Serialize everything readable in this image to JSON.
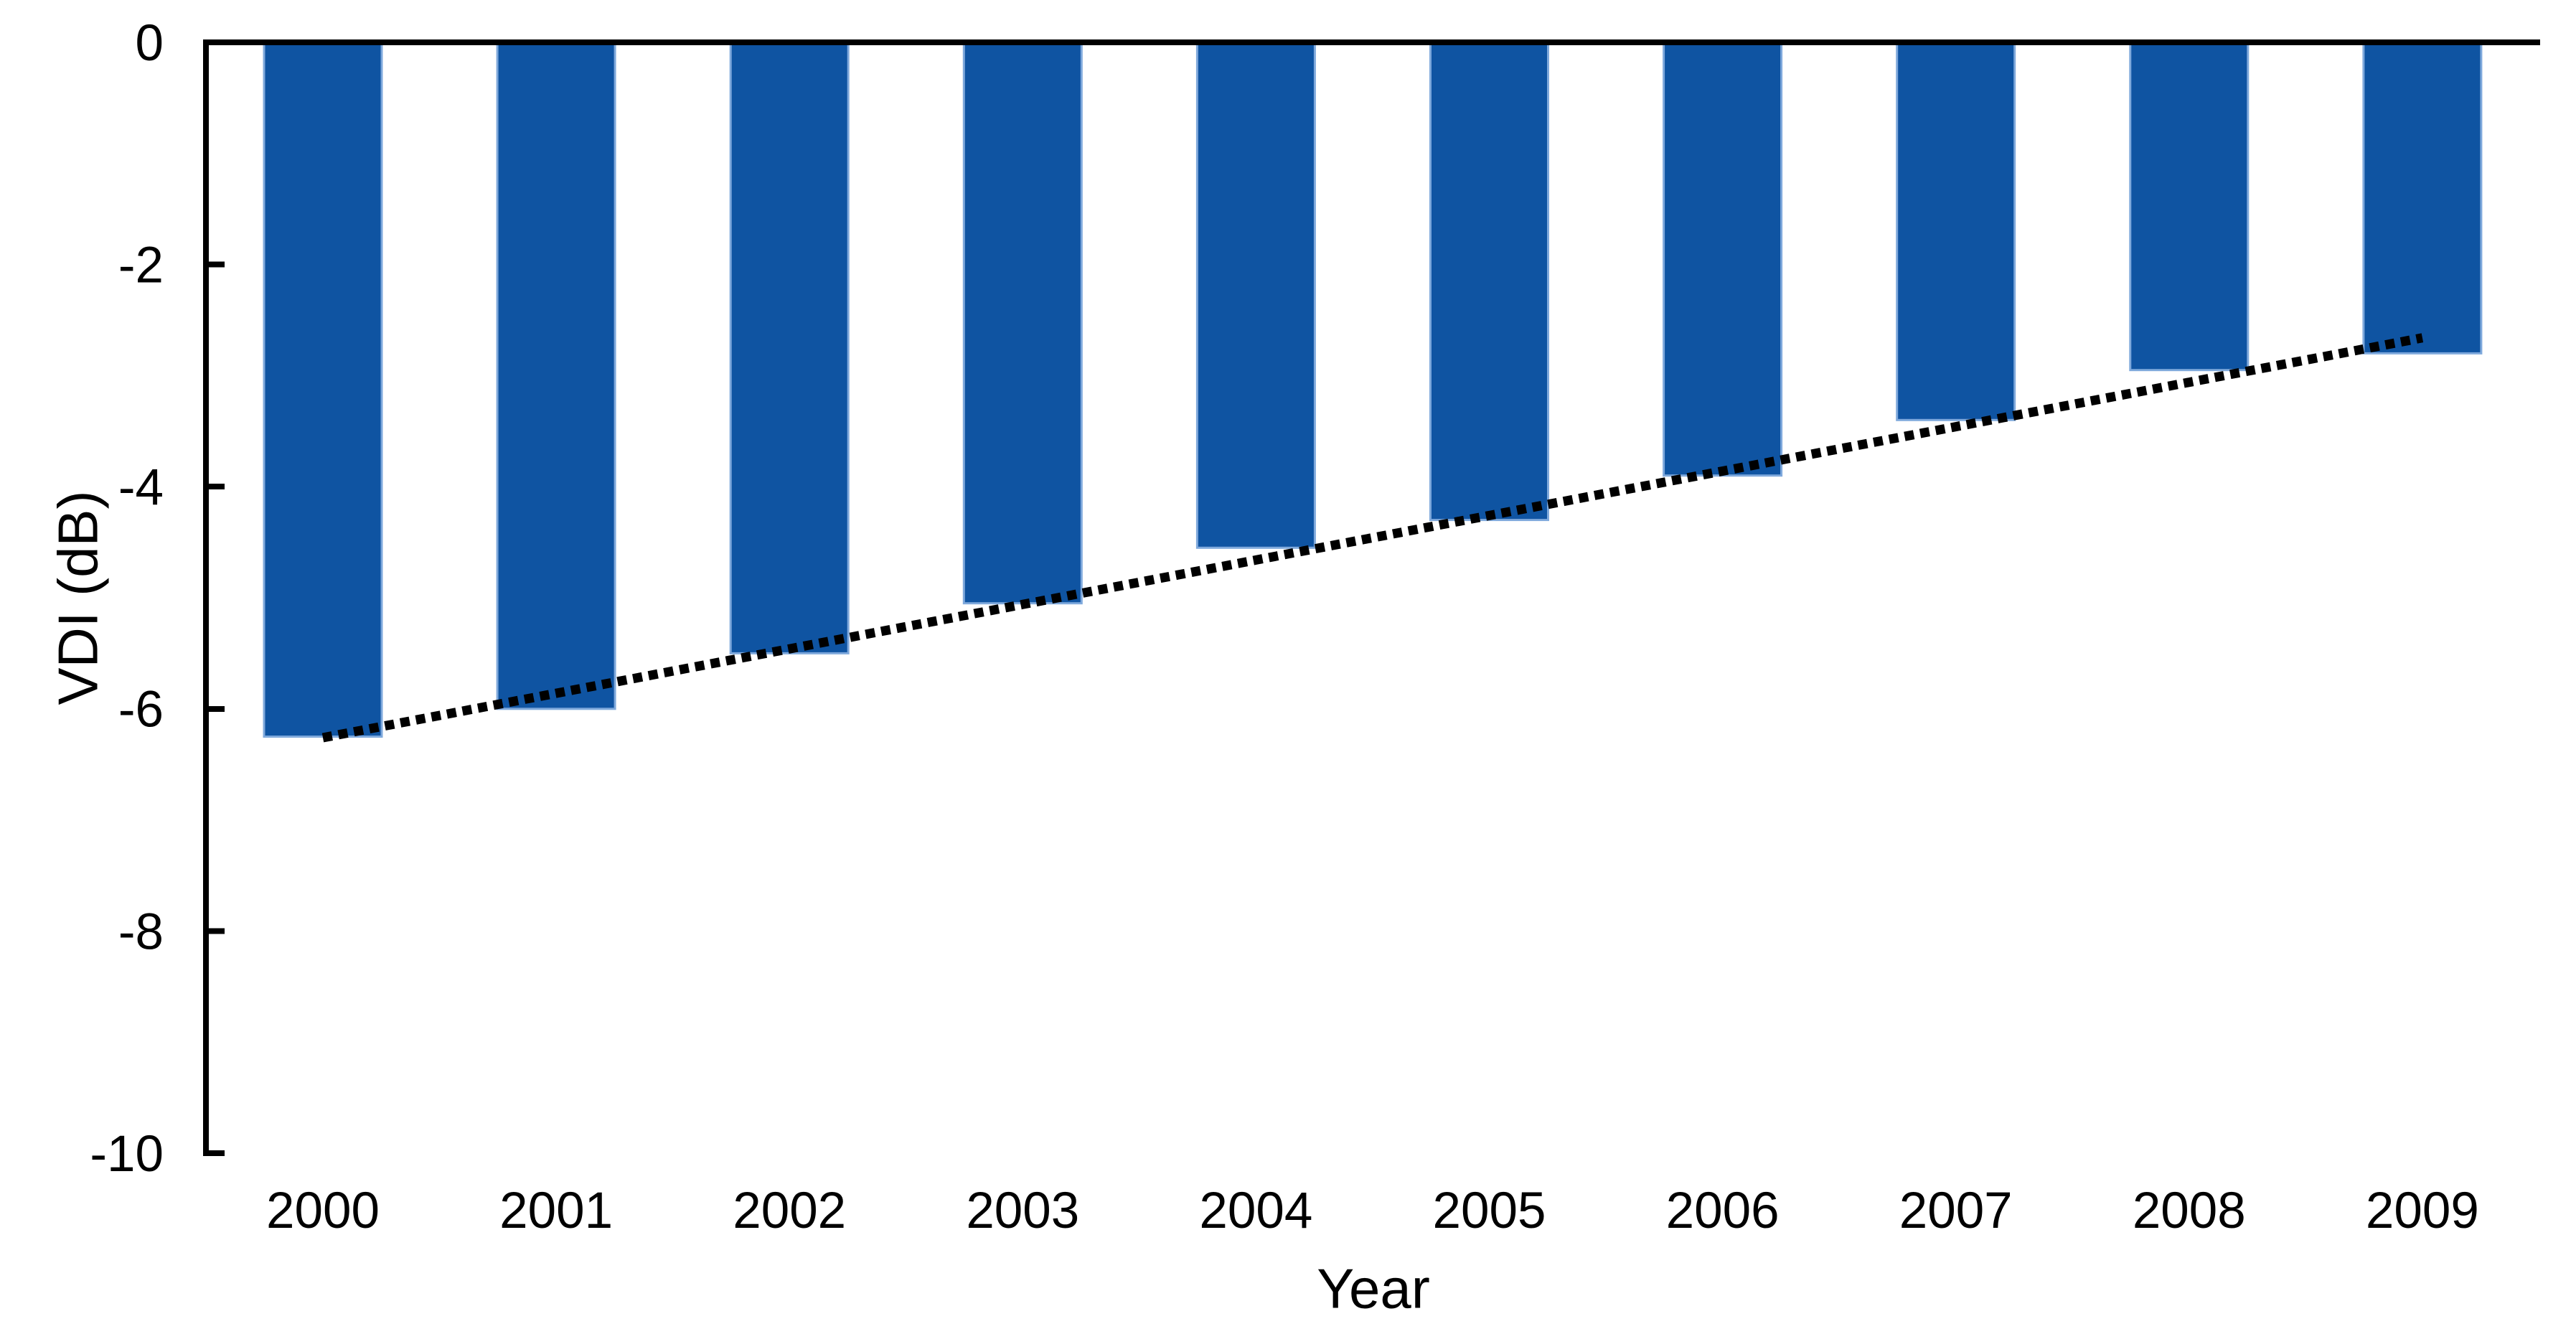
{
  "chart_data": {
    "type": "bar",
    "title": "",
    "xlabel": "Year",
    "ylabel": "VDI (dB)",
    "categories": [
      "2000",
      "2001",
      "2002",
      "2003",
      "2004",
      "2005",
      "2006",
      "2007",
      "2008",
      "2009"
    ],
    "series": [
      {
        "name": "VDI",
        "type": "bar",
        "values": [
          -6.25,
          -6.0,
          -5.5,
          -5.05,
          -4.55,
          -4.3,
          -3.9,
          -3.4,
          -2.95,
          -2.8
        ]
      },
      {
        "name": "trendline",
        "type": "dotted-line",
        "values": [
          -6.26,
          -5.86,
          -5.46,
          -5.06,
          -4.66,
          -4.26,
          -3.86,
          -3.46,
          -3.06,
          -2.66
        ]
      }
    ],
    "ylim": [
      -10,
      0
    ],
    "yticks": [
      0,
      -2,
      -4,
      -6,
      -8,
      -10
    ],
    "ytick_labels": [
      "0",
      "-2",
      "-4",
      "-6",
      "-8",
      "-10"
    ],
    "grid": false,
    "legend_position": "none"
  },
  "colors": {
    "bar_fill": "#0F54A2",
    "bar_border": "#7FA9DC",
    "axis": "#000000",
    "trendline": "#000000",
    "background": "#FFFFFF",
    "text": "#000000"
  }
}
